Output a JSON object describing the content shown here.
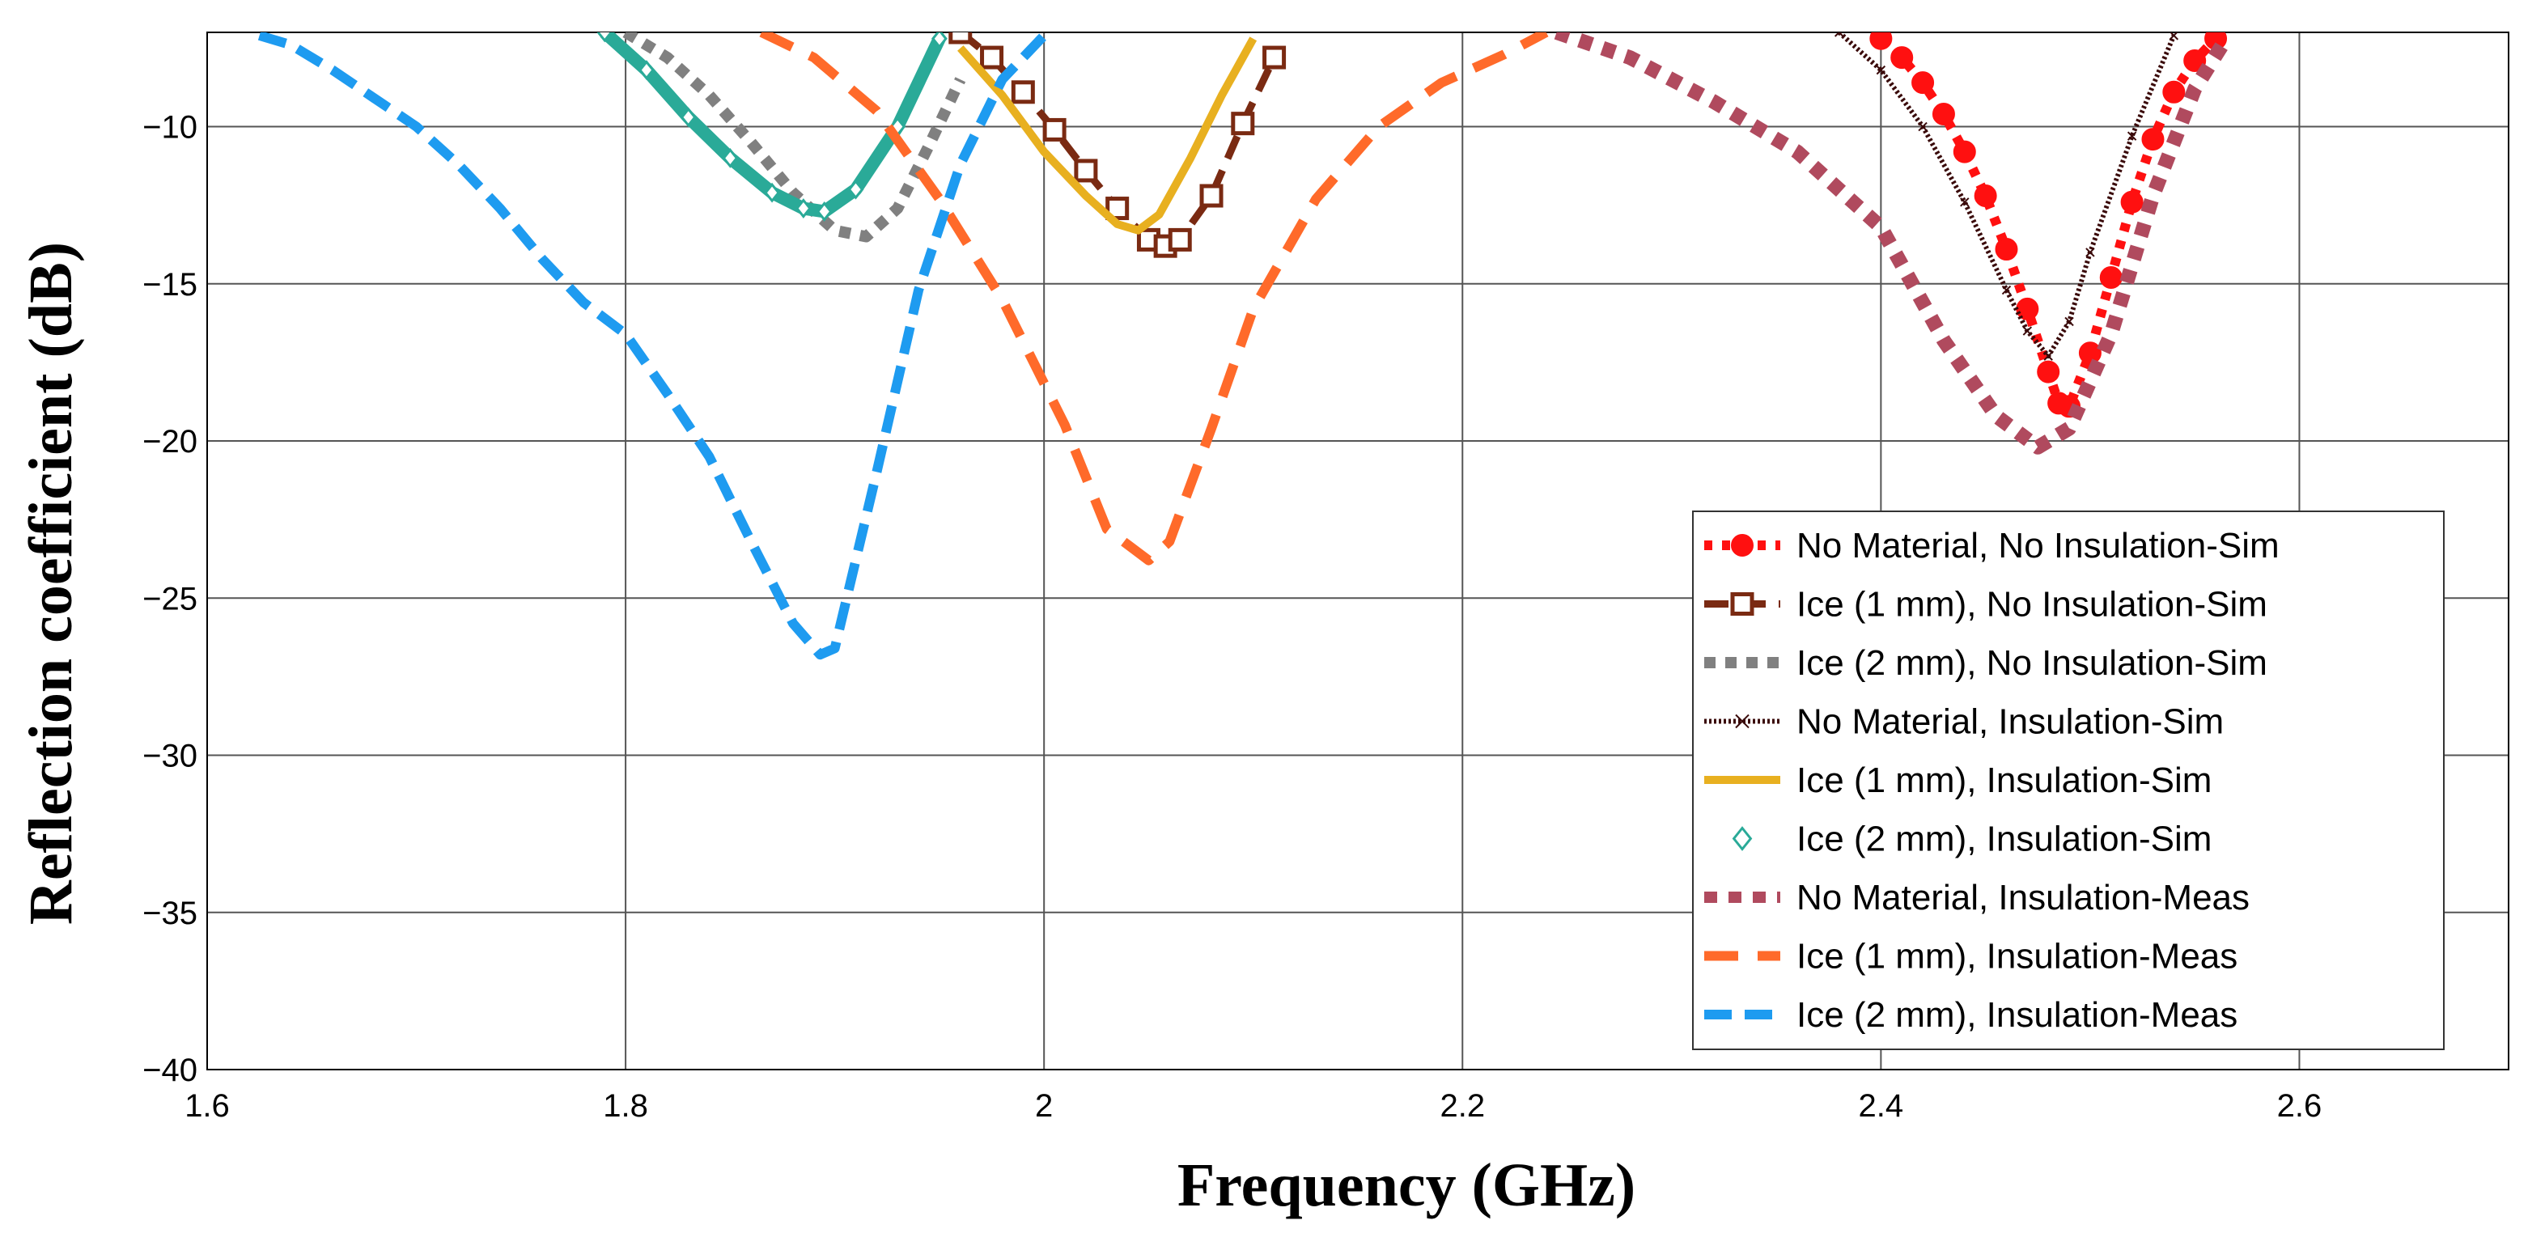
{
  "chart_data": {
    "type": "line",
    "title": "",
    "xlabel": "Frequency (GHz)",
    "ylabel": "Reflection coefficient (dB)",
    "xlim": [
      1.6,
      2.7
    ],
    "ylim": [
      -40,
      -7
    ],
    "xticks": [
      1.6,
      1.8,
      2.0,
      2.2,
      2.4,
      2.6
    ],
    "xtick_labels": [
      "1.6",
      "1.8",
      "2",
      "2.2",
      "2.4",
      "2.6"
    ],
    "yticks": [
      -40,
      -35,
      -30,
      -25,
      -20,
      -15,
      -10
    ],
    "ytick_labels": [
      "−40",
      "−35",
      "−30",
      "−25",
      "−20",
      "−15",
      "−10"
    ],
    "grid": true,
    "legend_position": "bottom-right",
    "series": [
      {
        "name": "No Material, No Insulation-Sim",
        "color": "#ff1010",
        "style": "dotted-circle",
        "x": [
          2.4,
          2.41,
          2.42,
          2.43,
          2.44,
          2.45,
          2.46,
          2.47,
          2.48,
          2.485,
          2.49,
          2.5,
          2.51,
          2.52,
          2.53,
          2.54,
          2.55,
          2.56
        ],
        "values": [
          -7.2,
          -7.8,
          -8.6,
          -9.6,
          -10.8,
          -12.2,
          -13.9,
          -15.8,
          -17.8,
          -18.8,
          -18.9,
          -17.2,
          -14.8,
          -12.4,
          -10.4,
          -8.9,
          -7.9,
          -7.2
        ]
      },
      {
        "name": "Ice (1 mm), No Insulation-Sim",
        "color": "#7a2a12",
        "style": "dashed-square",
        "x": [
          1.96,
          1.975,
          1.99,
          2.005,
          2.02,
          2.035,
          2.05,
          2.058,
          2.065,
          2.08,
          2.095,
          2.11
        ],
        "values": [
          -7.0,
          -7.8,
          -8.9,
          -10.1,
          -11.4,
          -12.6,
          -13.6,
          -13.8,
          -13.6,
          -12.2,
          -9.9,
          -7.8
        ]
      },
      {
        "name": "Ice (2 mm), No Insulation-Sim",
        "color": "#808080",
        "style": "thick-dotted",
        "x": [
          1.8,
          1.82,
          1.84,
          1.86,
          1.88,
          1.9,
          1.915,
          1.93,
          1.945,
          1.96
        ],
        "values": [
          -7.0,
          -7.8,
          -9.0,
          -10.5,
          -12.1,
          -13.3,
          -13.5,
          -12.6,
          -10.6,
          -8.5
        ]
      },
      {
        "name": "No Material, Insulation-Sim",
        "color": "#3a0a0a",
        "style": "dense-x",
        "x": [
          2.38,
          2.4,
          2.42,
          2.44,
          2.46,
          2.47,
          2.48,
          2.49,
          2.5,
          2.52,
          2.54
        ],
        "values": [
          -7.0,
          -8.2,
          -10.0,
          -12.4,
          -15.2,
          -16.5,
          -17.3,
          -16.2,
          -14.0,
          -10.3,
          -7.1
        ]
      },
      {
        "name": "Ice (1 mm), Insulation-Sim",
        "color": "#e8b020",
        "style": "thick-line",
        "x": [
          1.96,
          1.98,
          2.0,
          2.02,
          2.035,
          2.045,
          2.055,
          2.07,
          2.085,
          2.1
        ],
        "values": [
          -7.5,
          -9.0,
          -10.8,
          -12.2,
          -13.1,
          -13.3,
          -12.8,
          -11.0,
          -9.0,
          -7.2
        ]
      },
      {
        "name": "Ice (2 mm), Insulation-Sim",
        "color": "#2aaa98",
        "style": "diamond-band",
        "x": [
          1.79,
          1.81,
          1.83,
          1.85,
          1.87,
          1.885,
          1.895,
          1.91,
          1.93,
          1.95
        ],
        "values": [
          -7.0,
          -8.2,
          -9.7,
          -11.0,
          -12.1,
          -12.6,
          -12.7,
          -12.0,
          -10.0,
          -7.2
        ]
      },
      {
        "name": "No Material, Insulation-Meas",
        "color": "#b04a5e",
        "style": "square-dotted",
        "x": [
          2.245,
          2.28,
          2.32,
          2.36,
          2.4,
          2.43,
          2.455,
          2.475,
          2.49,
          2.51,
          2.53,
          2.55,
          2.565
        ],
        "values": [
          -7.0,
          -7.8,
          -9.2,
          -10.8,
          -13.2,
          -16.8,
          -19.2,
          -20.2,
          -19.6,
          -16.6,
          -12.2,
          -8.8,
          -7.2
        ]
      },
      {
        "name": "Ice (1 mm), Insulation-Meas",
        "color": "#ff6a2a",
        "style": "long-dash",
        "x": [
          1.865,
          1.89,
          1.92,
          1.95,
          1.98,
          2.01,
          2.03,
          2.05,
          2.06,
          2.08,
          2.1,
          2.13,
          2.16,
          2.19,
          2.22,
          2.24
        ],
        "values": [
          -7.0,
          -7.8,
          -9.5,
          -12.3,
          -15.5,
          -19.5,
          -22.8,
          -23.8,
          -23.2,
          -19.6,
          -15.8,
          -12.3,
          -10.0,
          -8.6,
          -7.7,
          -7.0
        ]
      },
      {
        "name": "Ice (2 mm), Insulation-Meas",
        "color": "#1e9bf0",
        "style": "dash",
        "x": [
          1.625,
          1.64,
          1.66,
          1.68,
          1.7,
          1.72,
          1.74,
          1.76,
          1.78,
          1.8,
          1.82,
          1.84,
          1.86,
          1.88,
          1.893,
          1.9,
          1.92,
          1.94,
          1.96,
          1.98,
          2.0
        ],
        "values": [
          -7.1,
          -7.4,
          -8.2,
          -9.1,
          -10.0,
          -11.2,
          -12.6,
          -14.2,
          -15.6,
          -16.6,
          -18.5,
          -20.5,
          -23.2,
          -25.8,
          -26.8,
          -26.6,
          -21.0,
          -15.2,
          -11.2,
          -8.5,
          -7.1
        ]
      }
    ]
  }
}
